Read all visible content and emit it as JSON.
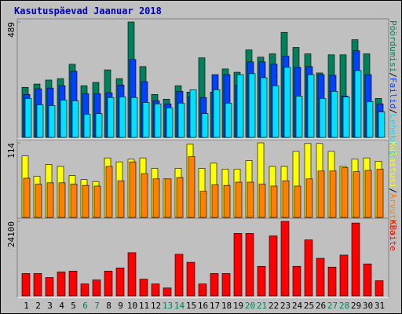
{
  "chart_data": [
    {
      "type": "bar",
      "title": "Kasutuspäevad Jaanuar 2018",
      "ylim": [
        0,
        489
      ],
      "yticks": [
        489
      ],
      "legend_separator": "/",
      "series": [
        {
          "name": "Pöördumisi",
          "color": "#00805c",
          "values": [
            212,
            226,
            243,
            249,
            310,
            219,
            233,
            286,
            249,
            489,
            300,
            182,
            162,
            219,
            192,
            337,
            192,
            290,
            276,
            371,
            340,
            354,
            445,
            381,
            354,
            273,
            350,
            350,
            414,
            354,
            165
          ]
        },
        {
          "name": "Failid",
          "color": "#0040ff",
          "values": [
            182,
            206,
            209,
            219,
            280,
            185,
            185,
            189,
            222,
            330,
            236,
            155,
            142,
            195,
            172,
            169,
            266,
            266,
            222,
            320,
            320,
            310,
            344,
            297,
            300,
            266,
            263,
            175,
            367,
            266,
            142
          ]
        },
        {
          "name": "Lehekülgi",
          "color": "#00e0ff",
          "values": [
            165,
            138,
            135,
            158,
            155,
            98,
            101,
            169,
            172,
            169,
            148,
            142,
            125,
            145,
            202,
            101,
            202,
            145,
            266,
            270,
            253,
            219,
            297,
            175,
            266,
            165,
            195,
            172,
            283,
            152,
            108
          ]
        }
      ]
    },
    {
      "type": "bar",
      "ylim": [
        0,
        114
      ],
      "yticks": [
        114
      ],
      "legend_separator": "/",
      "series": [
        {
          "name": "Külastusi",
          "color": "#ffff00",
          "values": [
            94,
            63,
            81,
            78,
            64,
            58,
            55,
            91,
            85,
            89,
            91,
            75,
            59,
            75,
            112,
            75,
            83,
            74,
            74,
            87,
            114,
            78,
            78,
            101,
            113,
            113,
            101,
            78,
            89,
            91,
            86
          ]
        },
        {
          "name": "Arvuteid",
          "color": "#ff8000",
          "values": [
            60,
            51,
            53,
            53,
            51,
            49,
            48,
            78,
            56,
            85,
            67,
            59,
            59,
            61,
            93,
            40,
            50,
            49,
            54,
            54,
            51,
            48,
            56,
            48,
            59,
            71,
            71,
            76,
            70,
            72,
            74
          ]
        }
      ]
    },
    {
      "type": "bar",
      "ylim": [
        0,
        24100
      ],
      "yticks": [
        24100
      ],
      "categories": [
        "1",
        "2",
        "3",
        "4",
        "5",
        "6",
        "7",
        "8",
        "9",
        "10",
        "11",
        "12",
        "13",
        "14",
        "15",
        "16",
        "17",
        "18",
        "19",
        "20",
        "21",
        "22",
        "23",
        "24",
        "25",
        "26",
        "27",
        "28",
        "29",
        "30",
        "31"
      ],
      "label_colors": [
        "#000",
        "#000",
        "#000",
        "#000",
        "#000",
        "#00805c",
        "#00805c",
        "#000",
        "#000",
        "#000",
        "#000",
        "#000",
        "#00805c",
        "#00805c",
        "#000",
        "#000",
        "#000",
        "#000",
        "#000",
        "#00805c",
        "#00805c",
        "#000",
        "#000",
        "#000",
        "#000",
        "#000",
        "#00805c",
        "#00805c",
        "#000",
        "#000",
        "#000"
      ],
      "series": [
        {
          "name": "KBaite",
          "color": "#ff0000",
          "values": [
            7252,
            7252,
            5957,
            7770,
            8029,
            3885,
            5180,
            8029,
            9065,
            13986,
            5439,
            3885,
            2590,
            13468,
            10878,
            3885,
            7252,
            7252,
            20202,
            20202,
            9583,
            19425,
            24100,
            9583,
            18130,
            12173,
            9324,
            13209,
            23569,
            10360,
            4921
          ]
        }
      ]
    }
  ]
}
